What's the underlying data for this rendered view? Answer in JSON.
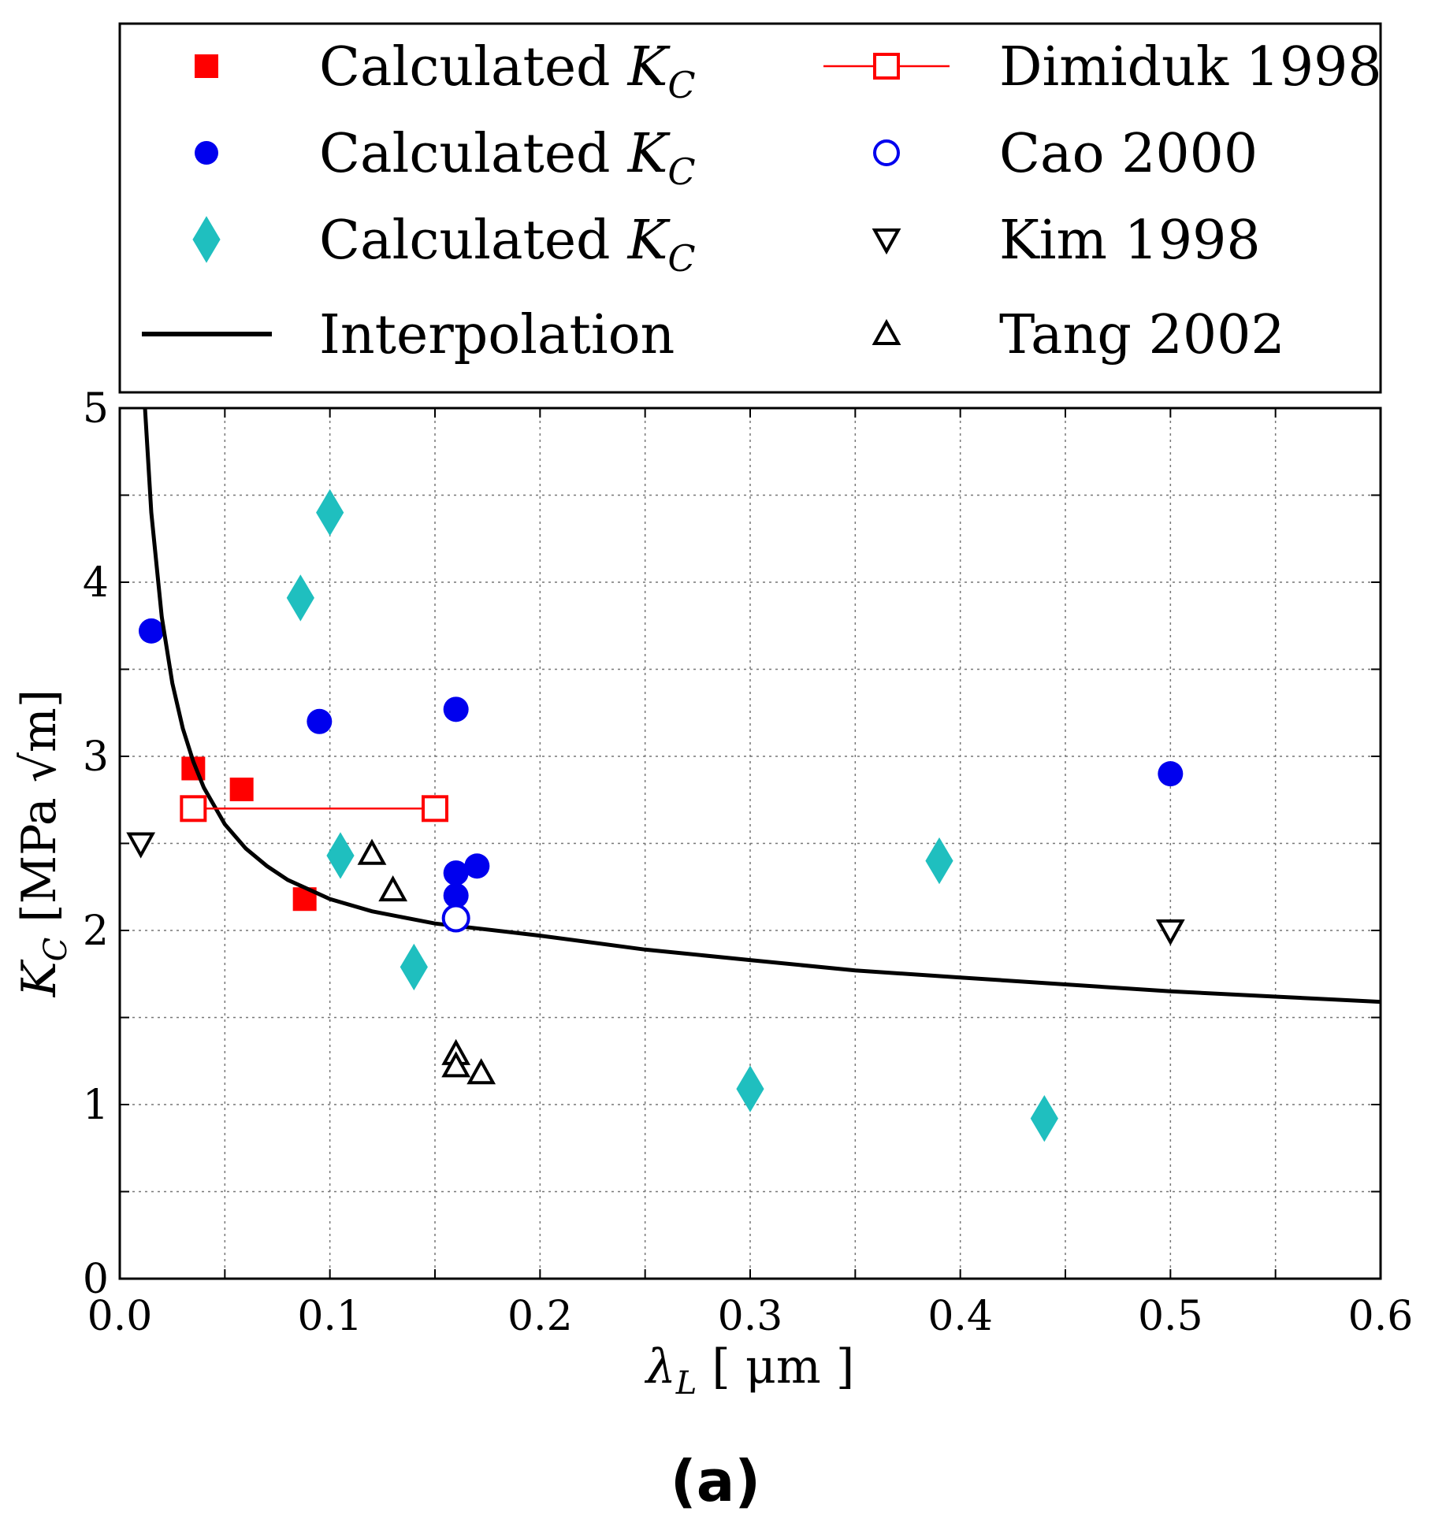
{
  "chart_data": {
    "type": "scatter",
    "title": "",
    "xlabel": "λL [ μm ]",
    "ylabel": "KC [MPa √m]",
    "xlim": [
      0.0,
      0.6
    ],
    "ylim": [
      0,
      5
    ],
    "x_ticks": [
      "0.0",
      "0.1",
      "0.2",
      "0.3",
      "0.4",
      "0.5",
      "0.6"
    ],
    "y_ticks": [
      "0",
      "1",
      "2",
      "3",
      "4",
      "5"
    ],
    "grid": true,
    "legend_position": "top",
    "panel_label": "(a)",
    "colors": {
      "red": "#ff0000",
      "blue": "#0000ee",
      "cyan": "#1fbfbf",
      "black": "#000000"
    },
    "series": [
      {
        "name": "Calculated KC",
        "marker": "square",
        "filled": true,
        "color": "#ff0000",
        "points": [
          [
            0.035,
            2.93
          ],
          [
            0.058,
            2.81
          ],
          [
            0.088,
            2.18
          ]
        ]
      },
      {
        "name": "Calculated KC",
        "marker": "circle",
        "filled": true,
        "color": "#0000ee",
        "points": [
          [
            0.015,
            3.72
          ],
          [
            0.095,
            3.2
          ],
          [
            0.16,
            3.27
          ],
          [
            0.16,
            2.33
          ],
          [
            0.16,
            2.2
          ],
          [
            0.17,
            2.37
          ],
          [
            0.5,
            2.9
          ]
        ]
      },
      {
        "name": "Calculated KC",
        "marker": "diamond",
        "filled": true,
        "color": "#1fbfbf",
        "points": [
          [
            0.1,
            4.4
          ],
          [
            0.086,
            3.91
          ],
          [
            0.105,
            2.43
          ],
          [
            0.14,
            1.79
          ],
          [
            0.3,
            1.09
          ],
          [
            0.39,
            2.4
          ],
          [
            0.44,
            0.92
          ]
        ]
      },
      {
        "name": "Interpolation",
        "marker": "line",
        "color": "#000000",
        "points": [
          [
            0.012,
            5.0
          ],
          [
            0.015,
            4.4
          ],
          [
            0.02,
            3.8
          ],
          [
            0.025,
            3.42
          ],
          [
            0.03,
            3.16
          ],
          [
            0.035,
            2.97
          ],
          [
            0.04,
            2.82
          ],
          [
            0.05,
            2.61
          ],
          [
            0.06,
            2.47
          ],
          [
            0.07,
            2.37
          ],
          [
            0.08,
            2.29
          ],
          [
            0.1,
            2.18
          ],
          [
            0.12,
            2.11
          ],
          [
            0.15,
            2.04
          ],
          [
            0.2,
            1.97
          ],
          [
            0.25,
            1.89
          ],
          [
            0.3,
            1.83
          ],
          [
            0.35,
            1.77
          ],
          [
            0.4,
            1.73
          ],
          [
            0.45,
            1.69
          ],
          [
            0.5,
            1.65
          ],
          [
            0.55,
            1.62
          ],
          [
            0.6,
            1.59
          ]
        ]
      },
      {
        "name": "Dimiduk 1998",
        "marker": "square",
        "filled": false,
        "color": "#ff0000",
        "connected": true,
        "points": [
          [
            0.035,
            2.7
          ],
          [
            0.15,
            2.7
          ]
        ]
      },
      {
        "name": "Cao 2000",
        "marker": "circle",
        "filled": false,
        "color": "#0000ee",
        "points": [
          [
            0.16,
            2.07
          ]
        ]
      },
      {
        "name": "Kim 1998",
        "marker": "triangle-down",
        "filled": false,
        "color": "#000000",
        "points": [
          [
            0.01,
            2.5
          ],
          [
            0.5,
            2.0
          ]
        ]
      },
      {
        "name": "Tang 2002",
        "marker": "triangle-up",
        "filled": false,
        "color": "#000000",
        "points": [
          [
            0.12,
            2.44
          ],
          [
            0.13,
            2.23
          ],
          [
            0.16,
            1.29
          ],
          [
            0.16,
            1.22
          ],
          [
            0.172,
            1.18
          ]
        ]
      }
    ],
    "legend": [
      {
        "label": "Calculated",
        "math": "KC",
        "sub": "C",
        "series": 0
      },
      {
        "label": "Calculated",
        "math": "KC",
        "sub": "C",
        "series": 1
      },
      {
        "label": "Calculated",
        "math": "KC",
        "sub": "C",
        "series": 2
      },
      {
        "label": "Interpolation",
        "series": 3
      },
      {
        "label": "Dimiduk 1998",
        "series": 4
      },
      {
        "label": "Cao 2000",
        "series": 5
      },
      {
        "label": "Kim 1998",
        "series": 6
      },
      {
        "label": "Tang 2002",
        "series": 7
      }
    ]
  }
}
